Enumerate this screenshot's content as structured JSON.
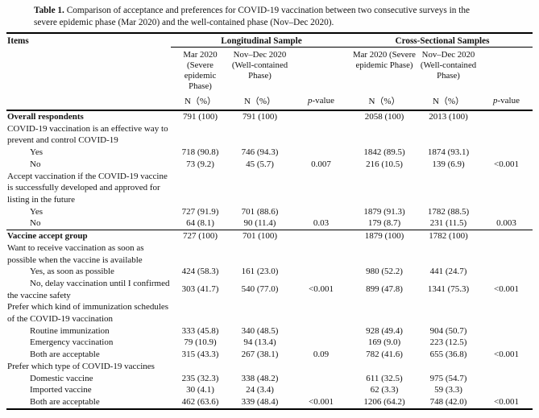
{
  "caption": {
    "label": "Table 1.",
    "text_line1": "Comparison of acceptance and preferences for COVID-19 vaccination between two consecutive surveys in the",
    "text_line2": "severe epidemic phase (Mar 2020) and the well-contained phase (Nov–Dec 2020)."
  },
  "table": {
    "items_header": "Items",
    "groups": [
      {
        "label": "Longitudinal Sample"
      },
      {
        "label": "Cross-Sectional Samples"
      }
    ],
    "columns": [
      "Mar 2020 (Severe epidemic Phase)",
      "Nov–Dec 2020 (Well-contained Phase)",
      "",
      "Mar 2020 (Severe epidemic Phase)",
      "Nov–Dec 2020 (Well-contained Phase)",
      ""
    ],
    "subheaders": {
      "n_pct": "N（%）",
      "p_italic": "p",
      "p_rest": "-value"
    },
    "rows": [
      {
        "label": "Overall respondents",
        "bold": true,
        "indent": false,
        "rule_above": false,
        "cells": [
          "791 (100)",
          "791 (100)",
          "",
          "2058 (100)",
          "2013 (100)",
          ""
        ]
      },
      {
        "label": "COVID-19 vaccination is an effective way to prevent and control COVID-19",
        "bold": false,
        "indent": false,
        "rule_above": false,
        "cells": [
          "",
          "",
          "",
          "",
          "",
          ""
        ]
      },
      {
        "label": "Yes",
        "bold": false,
        "indent": true,
        "rule_above": false,
        "cells": [
          "718 (90.8)",
          "746 (94.3)",
          "",
          "1842 (89.5)",
          "1874 (93.1)",
          ""
        ]
      },
      {
        "label": "No",
        "bold": false,
        "indent": true,
        "rule_above": false,
        "cells": [
          "73 (9.2)",
          "45 (5.7)",
          "0.007",
          "216 (10.5)",
          "139 (6.9)",
          "<0.001"
        ]
      },
      {
        "label": "Accept vaccination if the COVID-19 vaccine is successfully developed and approved for listing in the future",
        "bold": false,
        "indent": false,
        "rule_above": false,
        "cells": [
          "",
          "",
          "",
          "",
          "",
          ""
        ]
      },
      {
        "label": "Yes",
        "bold": false,
        "indent": true,
        "rule_above": false,
        "cells": [
          "727 (91.9)",
          "701 (88.6)",
          "",
          "1879 (91.3)",
          "1782 (88.5)",
          ""
        ]
      },
      {
        "label": "No",
        "bold": false,
        "indent": true,
        "rule_above": false,
        "cells": [
          "64 (8.1)",
          "90 (11.4)",
          "0.03",
          "179 (8.7)",
          "231 (11.5)",
          "0.003"
        ]
      },
      {
        "label": "Vaccine accept group",
        "bold": true,
        "indent": false,
        "rule_above": true,
        "cells": [
          "727 (100)",
          "701 (100)",
          "",
          "1879 (100)",
          "1782 (100)",
          ""
        ]
      },
      {
        "label": "Want to receive vaccination as soon as possible when the vaccine is available",
        "bold": false,
        "indent": false,
        "rule_above": false,
        "cells": [
          "",
          "",
          "",
          "",
          "",
          ""
        ]
      },
      {
        "label": "Yes, as soon as possible",
        "bold": false,
        "indent": true,
        "rule_above": false,
        "cells": [
          "424 (58.3)",
          "161 (23.0)",
          "",
          "980 (52.2)",
          "441 (24.7)",
          ""
        ]
      },
      {
        "label": "No, delay vaccination until I confirmed the vaccine safety",
        "bold": false,
        "indent": true,
        "rule_above": false,
        "cells": [
          "303 (41.7)",
          "540 (77.0)",
          "<0.001",
          "899 (47.8)",
          "1341 (75.3)",
          "<0.001"
        ]
      },
      {
        "label": "Prefer which kind of immunization schedules of the COVID-19 vaccination",
        "bold": false,
        "indent": false,
        "rule_above": false,
        "cells": [
          "",
          "",
          "",
          "",
          "",
          ""
        ]
      },
      {
        "label": "Routine immunization",
        "bold": false,
        "indent": true,
        "rule_above": false,
        "cells": [
          "333 (45.8)",
          "340 (48.5)",
          "",
          "928 (49.4)",
          "904 (50.7)",
          ""
        ]
      },
      {
        "label": "Emergency vaccination",
        "bold": false,
        "indent": true,
        "rule_above": false,
        "cells": [
          "79 (10.9)",
          "94 (13.4)",
          "",
          "169 (9.0)",
          "223 (12.5)",
          ""
        ]
      },
      {
        "label": "Both are acceptable",
        "bold": false,
        "indent": true,
        "rule_above": false,
        "cells": [
          "315 (43.3)",
          "267 (38.1)",
          "0.09",
          "782 (41.6)",
          "655 (36.8)",
          "<0.001"
        ]
      },
      {
        "label": "Prefer which type of COVID-19 vaccines",
        "bold": false,
        "indent": false,
        "rule_above": false,
        "cells": [
          "",
          "",
          "",
          "",
          "",
          ""
        ]
      },
      {
        "label": "Domestic vaccine",
        "bold": false,
        "indent": true,
        "rule_above": false,
        "cells": [
          "235 (32.3)",
          "338 (48.2)",
          "",
          "611 (32.5)",
          "975 (54.7)",
          ""
        ]
      },
      {
        "label": "Imported vaccine",
        "bold": false,
        "indent": true,
        "rule_above": false,
        "cells": [
          "30 (4.1)",
          "24 (3.4)",
          "",
          "62 (3.3)",
          "59 (3.3)",
          ""
        ]
      },
      {
        "label": "Both are acceptable",
        "bold": false,
        "indent": true,
        "rule_above": false,
        "cells": [
          "462 (63.6)",
          "339 (48.4)",
          "<0.001",
          "1206 (64.2)",
          "748 (42.0)",
          "<0.001"
        ]
      }
    ]
  }
}
